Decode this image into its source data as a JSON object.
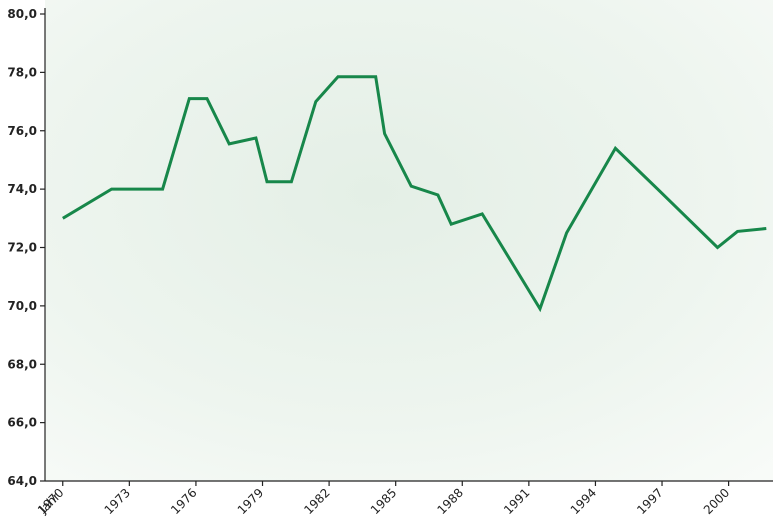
{
  "chart_data": {
    "type": "line",
    "xlabel": "Jahr",
    "x": [
      1970,
      1972.2,
      1974.5,
      1975.7,
      1976.5,
      1977.5,
      1978.7,
      1979.2,
      1980.3,
      1981.4,
      1982.4,
      1984.1,
      1984.5,
      1985.7,
      1986.9,
      1987.5,
      1988.9,
      1991.5,
      1992.7,
      1994.9,
      1996.8,
      1999.5,
      2000.4,
      2001.7
    ],
    "series": [
      {
        "color": "#17874a",
        "values": [
          73.0,
          74.0,
          74.0,
          77.1,
          77.1,
          75.55,
          75.75,
          74.25,
          74.25,
          77.0,
          77.85,
          77.85,
          75.9,
          74.1,
          73.8,
          72.8,
          73.15,
          69.9,
          72.5,
          75.4,
          74.0,
          72.0,
          72.55,
          72.65
        ]
      }
    ],
    "xlim": [
      1969.2,
      2002.0
    ],
    "xticks": [
      1970,
      1973,
      1976,
      1979,
      1982,
      1985,
      1988,
      1991,
      1994,
      1997,
      2000
    ],
    "ylim": [
      64,
      80
    ],
    "yticks": [
      {
        "value": 64,
        "label": "64,0"
      },
      {
        "value": 66,
        "label": "66,0"
      },
      {
        "value": 68,
        "label": "68,0"
      },
      {
        "value": 70,
        "label": "70,0"
      },
      {
        "value": 72,
        "label": "72,0"
      },
      {
        "value": 74,
        "label": "74,0"
      },
      {
        "value": 76,
        "label": "76,0"
      },
      {
        "value": 78,
        "label": "78,0"
      },
      {
        "value": 80,
        "label": "80,0"
      }
    ]
  }
}
